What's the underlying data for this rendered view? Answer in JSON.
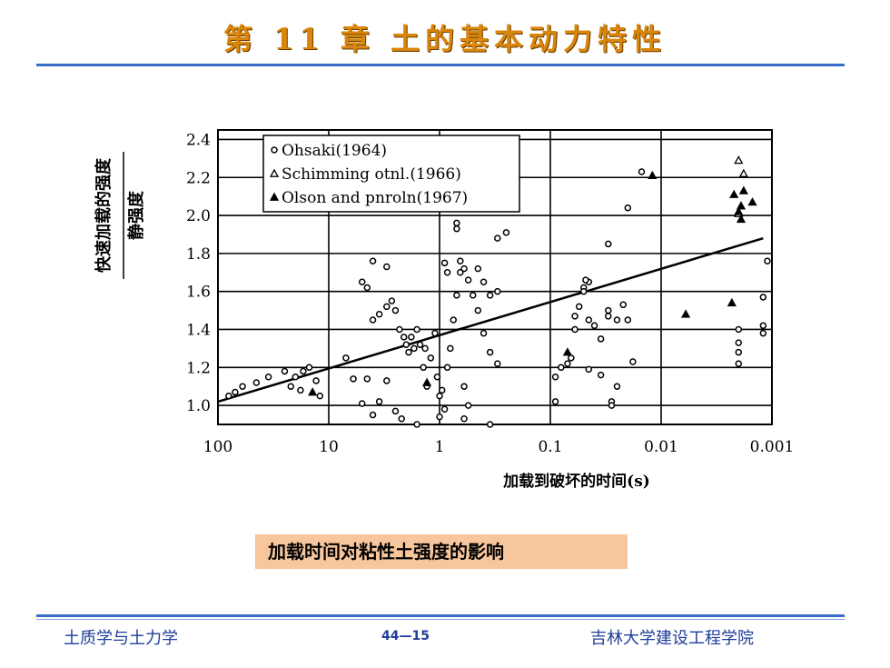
{
  "slide": {
    "title": "第 11 章  土的基本动力特性",
    "caption": "加载时间对粘性土强度的影响",
    "footer_left": "土质学与土力学",
    "footer_center": "44—15",
    "footer_right": "吉林大学建设工程学院"
  },
  "chart_data": {
    "type": "scatter",
    "xlabel": "加载到破坏的时间(s)",
    "ylabel_numerator": "快速加载的强度",
    "ylabel_denominator": "静强度",
    "x_scale": "log-reversed",
    "xlim": [
      100,
      0.001
    ],
    "ylim": [
      0.9,
      2.45
    ],
    "x_ticks": [
      {
        "value": 100,
        "label": "100"
      },
      {
        "value": 10,
        "label": "10"
      },
      {
        "value": 1,
        "label": "1"
      },
      {
        "value": 0.1,
        "label": "0.1"
      },
      {
        "value": 0.01,
        "label": "0.01"
      },
      {
        "value": 0.001,
        "label": "0.001"
      }
    ],
    "y_ticks": [
      {
        "value": 1.0,
        "label": "1.0"
      },
      {
        "value": 1.2,
        "label": "1.2"
      },
      {
        "value": 1.4,
        "label": "1.4"
      },
      {
        "value": 1.6,
        "label": "1.6"
      },
      {
        "value": 1.8,
        "label": "1.8"
      },
      {
        "value": 2.0,
        "label": "2.0"
      },
      {
        "value": 2.2,
        "label": "2.2"
      },
      {
        "value": 2.4,
        "label": "2.4"
      }
    ],
    "grid": true,
    "legend_position": "top-left",
    "series": [
      {
        "name": "Ohsaki(1964)",
        "marker": "circle-open",
        "points": [
          [
            80,
            1.05
          ],
          [
            70,
            1.07
          ],
          [
            60,
            1.1
          ],
          [
            45,
            1.12
          ],
          [
            35,
            1.15
          ],
          [
            25,
            1.18
          ],
          [
            22,
            1.1
          ],
          [
            20,
            1.15
          ],
          [
            18,
            1.08
          ],
          [
            17,
            1.18
          ],
          [
            15,
            1.2
          ],
          [
            13,
            1.13
          ],
          [
            12,
            1.05
          ],
          [
            7,
            1.25
          ],
          [
            6,
            1.14
          ],
          [
            5,
            1.01
          ],
          [
            4.5,
            1.14
          ],
          [
            4,
            0.95
          ],
          [
            3.5,
            1.02
          ],
          [
            3,
            1.13
          ],
          [
            2.5,
            0.97
          ],
          [
            5,
            1.65
          ],
          [
            4.5,
            1.62
          ],
          [
            4,
            1.45
          ],
          [
            3.5,
            1.48
          ],
          [
            3,
            1.52
          ],
          [
            2.7,
            1.55
          ],
          [
            2.5,
            1.5
          ],
          [
            2.3,
            1.4
          ],
          [
            2.1,
            1.36
          ],
          [
            2,
            1.32
          ],
          [
            1.9,
            1.28
          ],
          [
            1.8,
            1.36
          ],
          [
            1.7,
            1.3
          ],
          [
            1.6,
            1.4
          ],
          [
            1.5,
            1.32
          ],
          [
            1.4,
            1.2
          ],
          [
            1.35,
            1.3
          ],
          [
            1.3,
            1.1
          ],
          [
            1.2,
            1.25
          ],
          [
            1.1,
            1.38
          ],
          [
            1.05,
            1.15
          ],
          [
            1.0,
            1.05
          ],
          [
            4,
            1.76
          ],
          [
            3,
            1.73
          ],
          [
            0.95,
            1.08
          ],
          [
            0.9,
            0.98
          ],
          [
            0.85,
            1.2
          ],
          [
            0.8,
            1.3
          ],
          [
            0.75,
            1.45
          ],
          [
            0.7,
            1.58
          ],
          [
            0.65,
            1.7
          ],
          [
            0.6,
            1.1
          ],
          [
            0.55,
            1.0
          ],
          [
            0.7,
            1.96
          ],
          [
            0.7,
            1.93
          ],
          [
            0.65,
            1.76
          ],
          [
            0.6,
            1.72
          ],
          [
            0.55,
            1.66
          ],
          [
            0.5,
            1.58
          ],
          [
            0.45,
            1.5
          ],
          [
            0.4,
            1.38
          ],
          [
            0.35,
            1.28
          ],
          [
            0.3,
            1.22
          ],
          [
            0.9,
            1.75
          ],
          [
            0.85,
            1.7
          ],
          [
            0.45,
            1.72
          ],
          [
            0.4,
            1.65
          ],
          [
            0.35,
            1.58
          ],
          [
            0.3,
            1.6
          ],
          [
            0.3,
            1.88
          ],
          [
            0.25,
            1.91
          ],
          [
            2.2,
            0.93
          ],
          [
            1.6,
            0.9
          ],
          [
            1.0,
            0.94
          ],
          [
            0.6,
            0.93
          ],
          [
            0.35,
            0.9
          ],
          [
            0.09,
            1.02
          ],
          [
            0.09,
            1.15
          ],
          [
            0.08,
            1.2
          ],
          [
            0.07,
            1.22
          ],
          [
            0.065,
            1.25
          ],
          [
            0.06,
            1.4
          ],
          [
            0.06,
            1.47
          ],
          [
            0.055,
            1.52
          ],
          [
            0.05,
            1.62
          ],
          [
            0.045,
            1.65
          ],
          [
            0.05,
            1.6
          ],
          [
            0.048,
            1.66
          ],
          [
            0.045,
            1.45
          ],
          [
            0.04,
            1.42
          ],
          [
            0.035,
            1.35
          ],
          [
            0.03,
            1.5
          ],
          [
            0.03,
            1.47
          ],
          [
            0.025,
            1.45
          ],
          [
            0.022,
            1.53
          ],
          [
            0.02,
            1.45
          ],
          [
            0.018,
            1.23
          ],
          [
            0.025,
            1.1
          ],
          [
            0.028,
            1.02
          ],
          [
            0.028,
            1.0
          ],
          [
            0.045,
            1.19
          ],
          [
            0.035,
            1.16
          ],
          [
            0.03,
            1.85
          ],
          [
            0.02,
            2.04
          ],
          [
            0.015,
            2.23
          ],
          [
            0.002,
            1.4
          ],
          [
            0.002,
            1.33
          ],
          [
            0.002,
            1.28
          ],
          [
            0.002,
            1.22
          ],
          [
            0.0012,
            1.57
          ],
          [
            0.0012,
            1.42
          ],
          [
            0.0012,
            1.38
          ],
          [
            0.0011,
            1.76
          ]
        ]
      },
      {
        "name": "Schimming otnl.(1966)",
        "marker": "triangle-open",
        "points": [
          [
            0.002,
            2.29
          ],
          [
            0.0018,
            2.22
          ],
          [
            0.002,
            2.01
          ]
        ]
      },
      {
        "name": "Olson and pnroln(1967)",
        "marker": "triangle-filled",
        "points": [
          [
            14,
            1.07
          ],
          [
            1.3,
            1.12
          ],
          [
            0.07,
            1.28
          ],
          [
            0.012,
            2.21
          ],
          [
            0.006,
            1.48
          ],
          [
            0.0023,
            1.54
          ],
          [
            0.0022,
            2.11
          ],
          [
            0.0018,
            2.13
          ],
          [
            0.0015,
            2.07
          ],
          [
            0.0019,
            2.05
          ],
          [
            0.0019,
            1.98
          ],
          [
            0.002,
            2.02
          ]
        ]
      }
    ],
    "trend_line": {
      "from": [
        100,
        1.02
      ],
      "to": [
        0.0012,
        1.88
      ]
    }
  }
}
